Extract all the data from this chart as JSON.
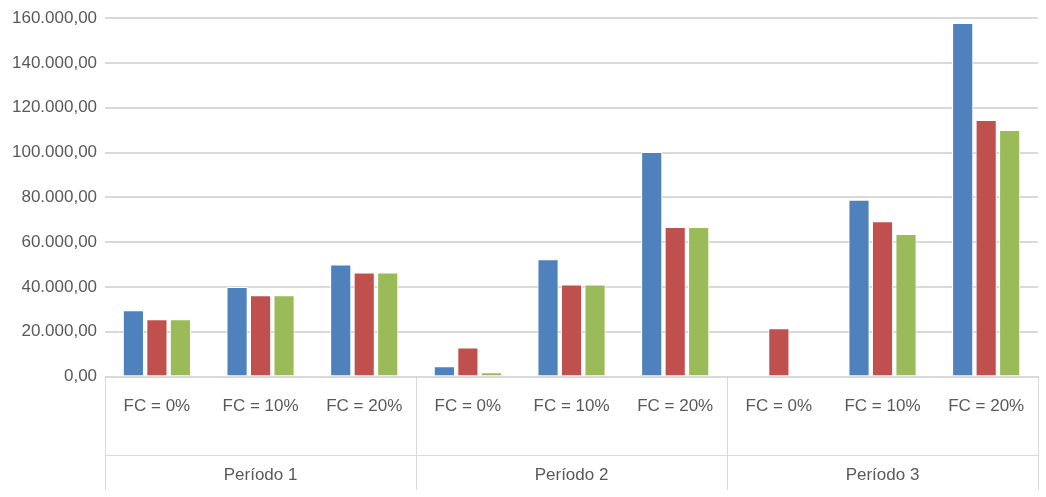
{
  "chart_data": {
    "type": "bar",
    "categories": [
      "FC = 0%",
      "FC = 10%",
      "FC = 20%",
      "FC = 0%",
      "FC = 10%",
      "FC = 20%",
      "FC = 0%",
      "FC = 10%",
      "FC = 20%"
    ],
    "series": [
      {
        "color": "#4f81bd",
        "values": [
          29600,
          40000,
          50100,
          4600,
          52400,
          100300,
          0,
          78900,
          157900
        ]
      },
      {
        "color": "#c0504d",
        "values": [
          25600,
          36300,
          46500,
          13000,
          41100,
          66800,
          21600,
          69400,
          114500
        ]
      },
      {
        "color": "#9bbb59",
        "values": [
          25600,
          36300,
          46500,
          1900,
          41100,
          66800,
          0,
          63700,
          110100
        ]
      }
    ],
    "annotations": [
      "Período 1",
      "Período 2",
      "Período 3"
    ],
    "ylim": [
      0,
      160000
    ],
    "yticks": [
      {
        "value": 0,
        "label": "0,00"
      },
      {
        "value": 20000,
        "label": "20.000,00"
      },
      {
        "value": 40000,
        "label": "40.000,00"
      },
      {
        "value": 60000,
        "label": "60.000,00"
      },
      {
        "value": 80000,
        "label": "80.000,00"
      },
      {
        "value": 100000,
        "label": "100.000,00"
      },
      {
        "value": 120000,
        "label": "120.000,00"
      },
      {
        "value": 140000,
        "label": "140.000,00"
      },
      {
        "value": 160000,
        "label": "160.000,00"
      }
    ],
    "grid": "y",
    "legend": false
  }
}
